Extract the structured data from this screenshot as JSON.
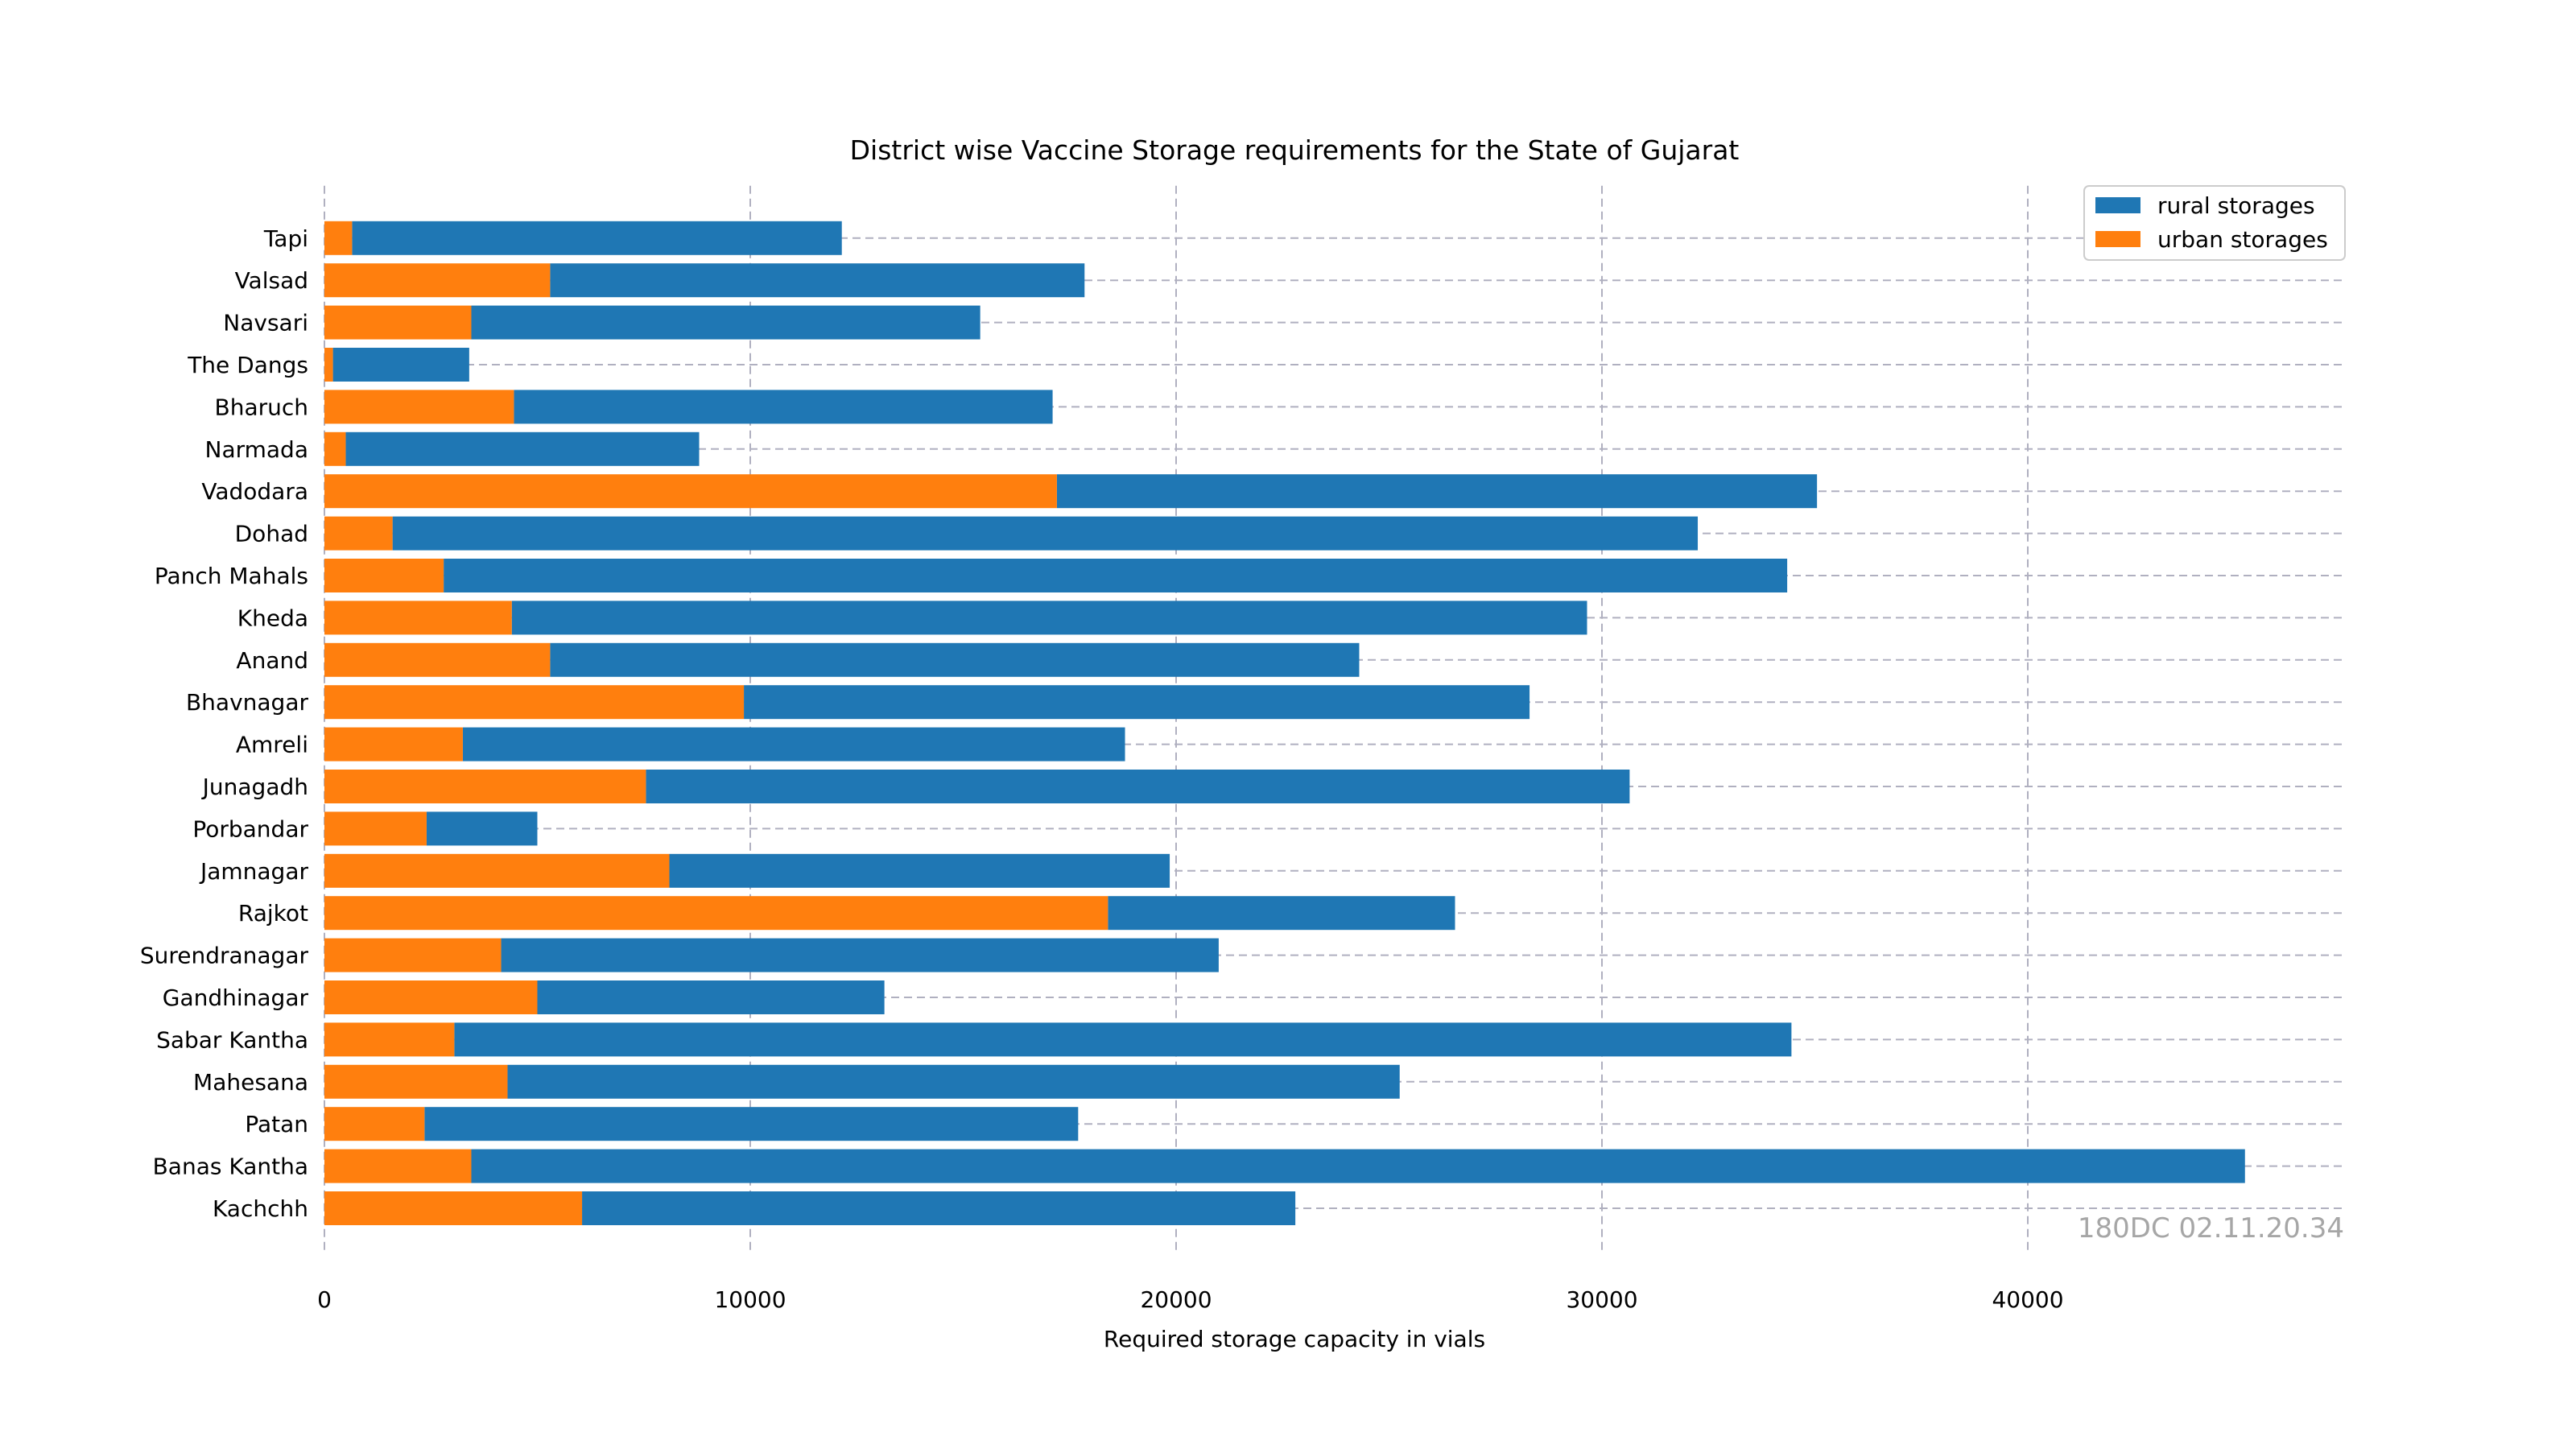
{
  "chart_data": {
    "type": "bar",
    "orientation": "horizontal",
    "stacked": true,
    "title": "District wise Vaccine Storage requirements for the State of Gujarat",
    "xlabel": "Required storage capacity in vials",
    "ylabel": "",
    "xlim": [
      0,
      47000
    ],
    "xticks": [
      0,
      10000,
      20000,
      30000,
      40000
    ],
    "xtick_labels": [
      "0",
      "10000",
      "20000",
      "30000",
      "40000"
    ],
    "grid": true,
    "grid_style": "dashed",
    "legend_position": "top-right",
    "categories": [
      "Kachchh",
      "Banas Kantha",
      "Patan",
      "Mahesana",
      "Sabar Kantha",
      "Gandhinagar",
      "Surendranagar",
      "Rajkot",
      "Jamnagar",
      "Porbandar",
      "Junagadh",
      "Amreli",
      "Bhavnagar",
      "Anand",
      "Kheda",
      "Panch Mahals",
      "Dohad",
      "Vadodara",
      "Narmada",
      "Bharuch",
      "The Dangs",
      "Navsari",
      "Valsad",
      "Tapi"
    ],
    "series": [
      {
        "name": "urban storages",
        "color": "#ff7f0e",
        "values": [
          6050,
          3450,
          2350,
          4300,
          3050,
          5000,
          4150,
          18400,
          8100,
          2400,
          7550,
          3250,
          9850,
          5300,
          4400,
          2800,
          1600,
          17200,
          500,
          4450,
          200,
          3450,
          5300,
          650
        ]
      },
      {
        "name": "rural storages",
        "color": "#1f77b4",
        "values": [
          16750,
          41650,
          15350,
          20950,
          31400,
          8150,
          16850,
          8150,
          11750,
          2600,
          23100,
          15550,
          18450,
          19000,
          25250,
          31550,
          30650,
          17850,
          8300,
          12650,
          3200,
          11950,
          12550,
          11500
        ]
      }
    ],
    "totals": [
      22800,
      45100,
      17700,
      25250,
      34450,
      13150,
      21000,
      26550,
      19850,
      5000,
      30650,
      18800,
      28300,
      24300,
      29650,
      34350,
      32250,
      35050,
      8800,
      17100,
      3400,
      15400,
      17850,
      12150
    ],
    "watermark": "180DC 02.11.20.34"
  }
}
